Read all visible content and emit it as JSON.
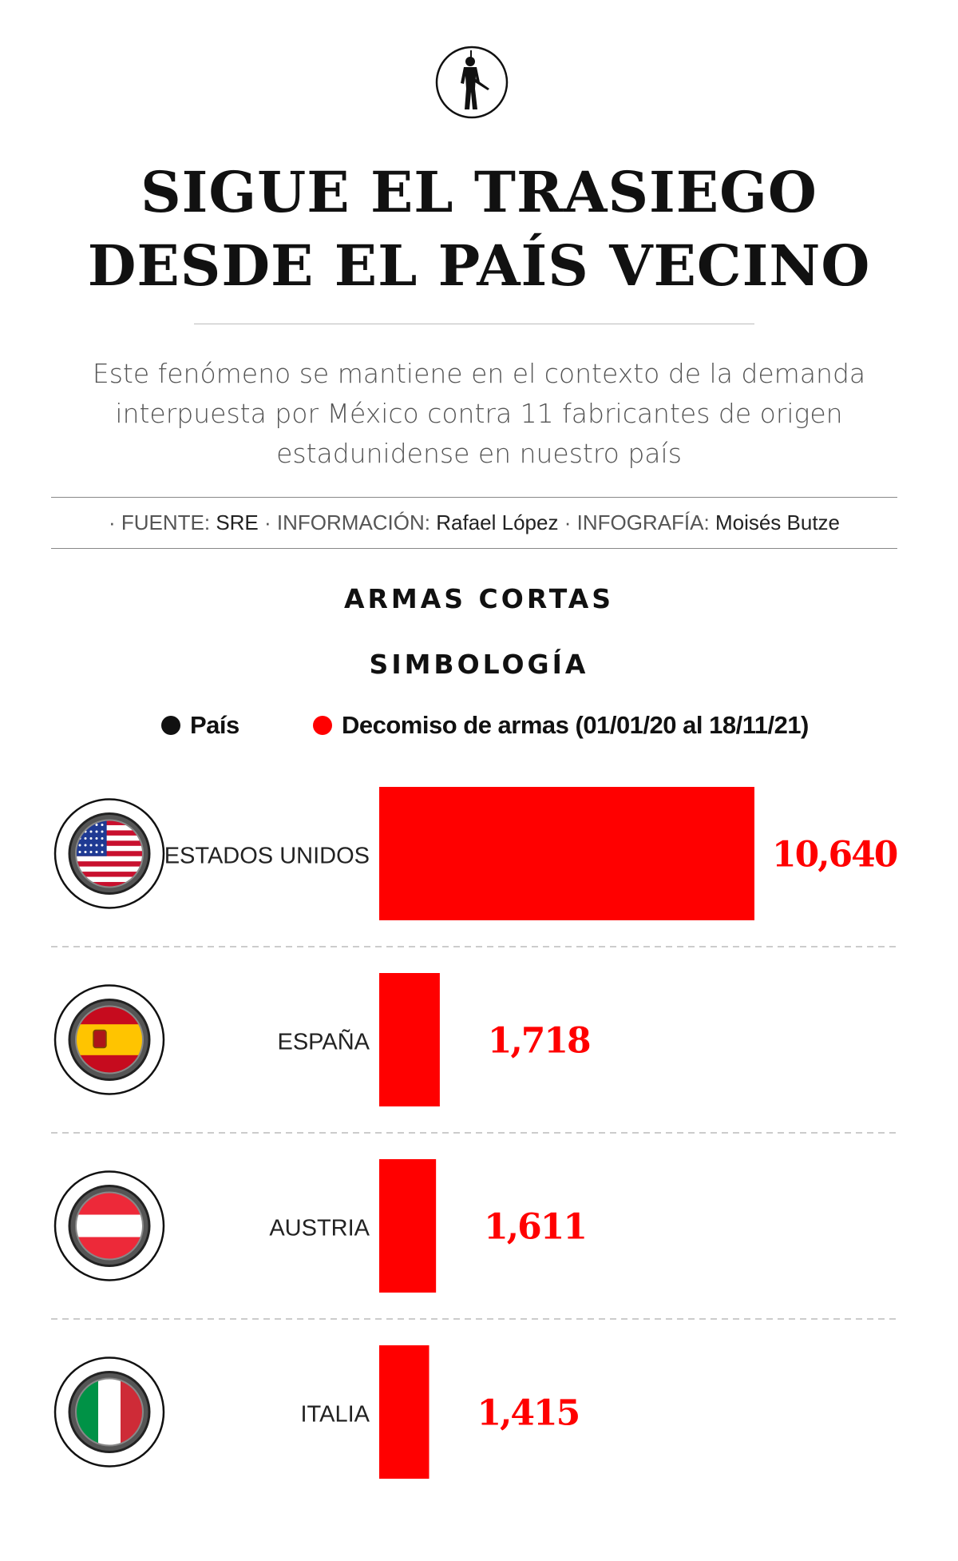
{
  "header": {
    "logo_icon": "soldier-silhouette-icon",
    "title_line1": "SIGUE EL TRASIEGO",
    "title_line2": "DESDE EL PAÍS VECINO",
    "subtitle_line1": "Este fenómeno se mantiene en el contexto de la demanda",
    "subtitle_line2": "interpuesta por México contra 11 fabricantes de origen",
    "subtitle_line3": "estadunidense en nuestro país"
  },
  "credits": {
    "fuente_label": "· FUENTE:",
    "fuente_value": "SRE",
    "info_label": "· INFORMACIÓN:",
    "info_value": "Rafael López",
    "infografia_label": "· INFOGRAFÍA:",
    "infografia_value": "Moisés Butze"
  },
  "section": {
    "title": "ARMAS CORTAS",
    "legend_title": "SIMBOLOGÍA"
  },
  "legend": [
    {
      "label": "País",
      "color": "#111111"
    },
    {
      "label": "Decomiso de armas (01/01/20 al 18/11/21)",
      "color": "#ff0000"
    }
  ],
  "chart_data": {
    "type": "bar",
    "orientation": "horizontal",
    "categories": [
      "ESTADOS UNIDOS",
      "ESPAÑA",
      "AUSTRIA",
      "ITALIA"
    ],
    "values": [
      10640,
      1718,
      1611,
      1415
    ],
    "value_labels": [
      "10,640",
      "1,718",
      "1,611",
      "1,415"
    ],
    "flag_icons": [
      "usa-flag-icon",
      "spain-flag-icon",
      "austria-flag-icon",
      "italy-flag-icon"
    ],
    "series_color": "#ff0000",
    "xlim": [
      0,
      10640
    ],
    "grid": false
  }
}
